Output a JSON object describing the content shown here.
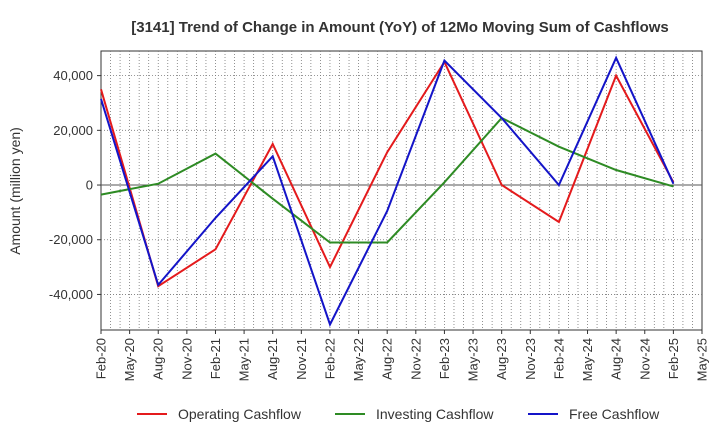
{
  "chart_data": {
    "type": "line",
    "title": "[3141]  Trend of Change in Amount (YoY) of 12Mo Moving Sum of Cashflows",
    "xlabel": "",
    "ylabel": "Amount (million yen)",
    "ylim": [
      -53000,
      49000
    ],
    "yticks": [
      40000,
      20000,
      0,
      -20000,
      -40000
    ],
    "ytick_labels": [
      "40,000",
      "20,000",
      "0",
      "-20,000",
      "-40,000"
    ],
    "categories": [
      "Feb-20",
      "May-20",
      "Aug-20",
      "Nov-20",
      "Feb-21",
      "May-21",
      "Aug-21",
      "Nov-21",
      "Feb-22",
      "May-22",
      "Aug-22",
      "Nov-22",
      "Feb-23",
      "May-23",
      "Aug-23",
      "Nov-23",
      "Feb-24",
      "May-24",
      "Aug-24",
      "Nov-24",
      "Feb-25",
      "May-25"
    ],
    "grid": true,
    "legend_position": "bottom",
    "series": [
      {
        "name": "Operating Cashflow",
        "color": "#e41a1c",
        "values": [
          35000,
          null,
          -37000,
          null,
          -23500,
          null,
          15000,
          null,
          -30000,
          null,
          12000,
          null,
          45000,
          null,
          0,
          null,
          -13500,
          null,
          40000,
          null,
          1000,
          null
        ]
      },
      {
        "name": "Investing Cashflow",
        "color": "#2e8b24",
        "values": [
          -3500,
          null,
          500,
          null,
          11500,
          null,
          -5000,
          null,
          -21000,
          null,
          -21000,
          null,
          1000,
          null,
          24500,
          null,
          14000,
          null,
          5500,
          null,
          -500,
          null
        ]
      },
      {
        "name": "Free Cashflow",
        "color": "#1414c8",
        "values": [
          31500,
          null,
          -36500,
          null,
          -12000,
          null,
          10500,
          null,
          -51000,
          null,
          -9500,
          null,
          45500,
          null,
          24500,
          null,
          0,
          null,
          46500,
          null,
          500,
          null
        ]
      }
    ]
  }
}
